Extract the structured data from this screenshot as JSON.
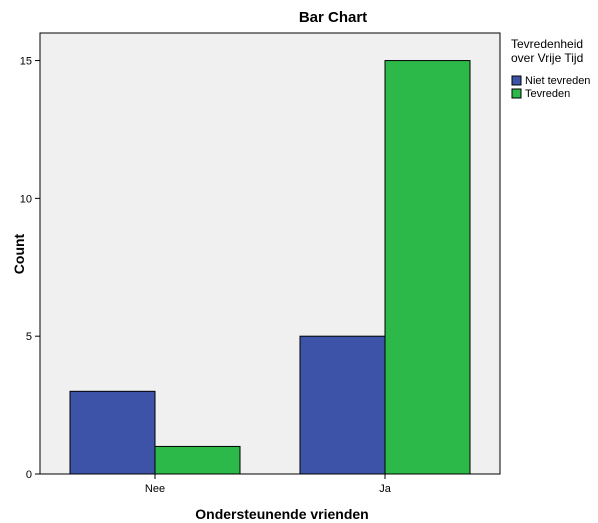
{
  "chart_data": {
    "type": "bar",
    "title": "Bar Chart",
    "xlabel": "Ondersteunende vrienden",
    "ylabel": "Count",
    "categories": [
      "Nee",
      "Ja"
    ],
    "series": [
      {
        "name": "Niet tevreden",
        "values": [
          3,
          5
        ],
        "color": "#3d53a8"
      },
      {
        "name": "Tevreden",
        "values": [
          1,
          15
        ],
        "color": "#2db84a"
      }
    ],
    "ylim": [
      0,
      16
    ],
    "yticks": [
      0,
      5,
      10,
      15
    ],
    "legend": {
      "title_lines": [
        "Tevredenheid",
        "over Vrije Tijd"
      ],
      "placement": "right-top"
    },
    "plot_background": "#f0f0f0",
    "grid": false
  }
}
